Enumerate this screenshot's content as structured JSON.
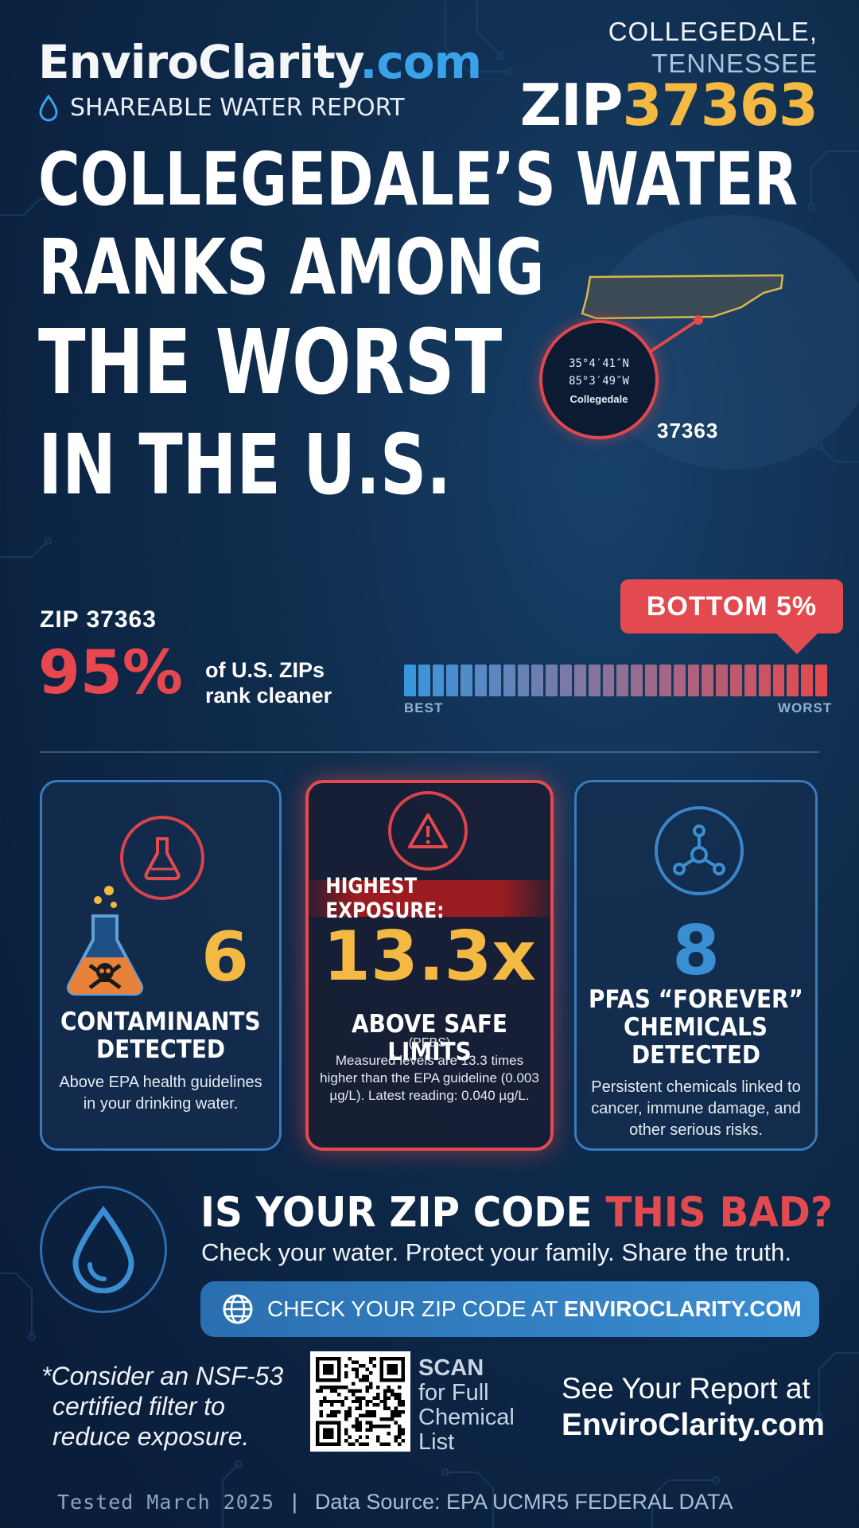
{
  "header": {
    "brand_main": "EnviroClarity",
    "brand_tld": ".com",
    "subtitle": "SHAREABLE WATER REPORT",
    "city": "COLLEGEDALE,",
    "state": "TENNESSEE",
    "zip_prefix": "ZIP",
    "zip_code": "37363"
  },
  "headline": {
    "line1": "COLLEGEDALE’S WATER",
    "line2": "RANKS AMONG",
    "line3": "THE WORST",
    "line4": "IN THE U.S."
  },
  "map": {
    "lat": "35°4′41″N",
    "lon": "85°3′49″W",
    "place": "Collegedale",
    "zip": "37363"
  },
  "rank": {
    "zip_label": "ZIP 37363",
    "percent": "95%",
    "desc_line1": "of U.S. ZIPs",
    "desc_line2": "rank cleaner",
    "badge": "BOTTOM 5%",
    "scale_best": "BEST",
    "scale_worst": "WORST",
    "percentile_value": 0.95
  },
  "cards": {
    "contaminants": {
      "number": "6",
      "title_line1": "CONTAMINANTS",
      "title_line2": "DETECTED",
      "body": "Above EPA health guidelines in your drinking water."
    },
    "exposure": {
      "banner": "HIGHEST EXPOSURE:",
      "number": "13.3x",
      "title": "ABOVE SAFE LIMITS",
      "sub": "(PFBS)",
      "body": "Measured levels are 13.3 times higher than the EPA guideline (0.003 µg/L). Latest reading: 0.040 µg/L."
    },
    "pfas": {
      "number": "8",
      "title_line1": "PFAS “FOREVER”",
      "title_line2": "CHEMICALS",
      "title_line3": "DETECTED",
      "body": "Persistent chemicals linked to cancer, immune damage, and other serious risks."
    }
  },
  "cta": {
    "question_a": "IS YOUR ZIP CODE ",
    "question_b": "THIS BAD?",
    "tagline": "Check your water. Protect your family. Share the truth.",
    "button_a": "CHECK YOUR ZIP CODE AT ",
    "button_b": "ENVIROCLARITY.COM"
  },
  "footer": {
    "nsf_line1": "*Consider an NSF-53",
    "nsf_line2": "certified filter to",
    "nsf_line3": "reduce exposure.",
    "scan_title": "SCAN",
    "scan_line1": "for Full",
    "scan_line2": "Chemical",
    "scan_line3": "List",
    "see_line": "See Your Report at",
    "see_url": "EnviroClarity.com",
    "tested": "Tested March 2025",
    "separator": "|",
    "source": "Data Source: EPA UCMR5 FEDERAL DATA"
  },
  "colors": {
    "accent_blue": "#3aa2ea",
    "accent_gold": "#f4b942",
    "alert_red": "#e24a4f",
    "background": "#0f2c4c"
  },
  "icons": [
    "water-drop-icon",
    "flask-icon",
    "skull-flask-icon",
    "warning-icon",
    "molecule-icon",
    "globe-icon",
    "qr-code"
  ]
}
